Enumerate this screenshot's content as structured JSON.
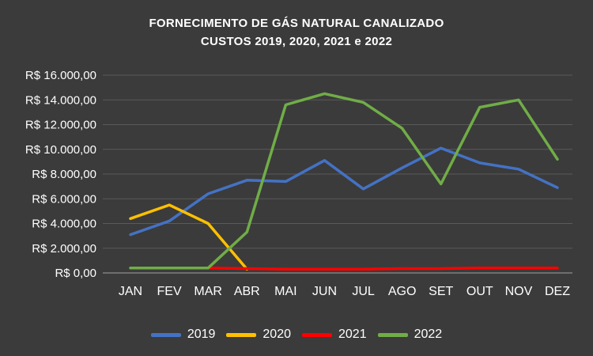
{
  "title": {
    "line1": "FORNECIMENTO DE GÁS NATURAL CANALIZADO",
    "line2": "CUSTOS 2019, 2020, 2021 e 2022"
  },
  "colors": {
    "background": "#3b3b3b",
    "grid": "#5a5a5a",
    "axis": "#808080",
    "text": "#ffffff"
  },
  "chart_data": {
    "type": "line",
    "title": "FORNECIMENTO DE GÁS NATURAL CANALIZADO CUSTOS 2019, 2020, 2021 e 2022",
    "categories": [
      "JAN",
      "FEV",
      "MAR",
      "ABR",
      "MAI",
      "JUN",
      "JUL",
      "AGO",
      "SET",
      "OUT",
      "NOV",
      "DEZ"
    ],
    "series": [
      {
        "name": "2019",
        "color": "#4472C4",
        "values": [
          3100,
          4200,
          6400,
          7500,
          7400,
          9100,
          6800,
          8500,
          10100,
          8900,
          8400,
          6900
        ]
      },
      {
        "name": "2020",
        "color": "#FFC000",
        "values": [
          4400,
          5500,
          4000,
          300,
          null,
          null,
          null,
          null,
          null,
          null,
          null,
          null
        ]
      },
      {
        "name": "2021",
        "color": "#FF0000",
        "values": [
          400,
          400,
          400,
          350,
          300,
          300,
          300,
          350,
          350,
          400,
          400,
          400
        ]
      },
      {
        "name": "2022",
        "color": "#70AD47",
        "values": [
          400,
          400,
          400,
          3300,
          13600,
          14500,
          13800,
          11700,
          7200,
          13400,
          14000,
          9200
        ]
      }
    ],
    "ylim": [
      0,
      16000
    ],
    "y_tick_step": 2000,
    "y_tick_labels": [
      "R$ 0,00",
      "R$ 2.000,00",
      "R$ 4.000,00",
      "R$ 6.000,00",
      "R$ 8.000,00",
      "R$ 10.000,00",
      "R$ 12.000,00",
      "R$ 14.000,00",
      "R$ 16.000,00"
    ],
    "xlabel": "",
    "ylabel": "",
    "grid": "horizontal",
    "legend_position": "bottom"
  }
}
